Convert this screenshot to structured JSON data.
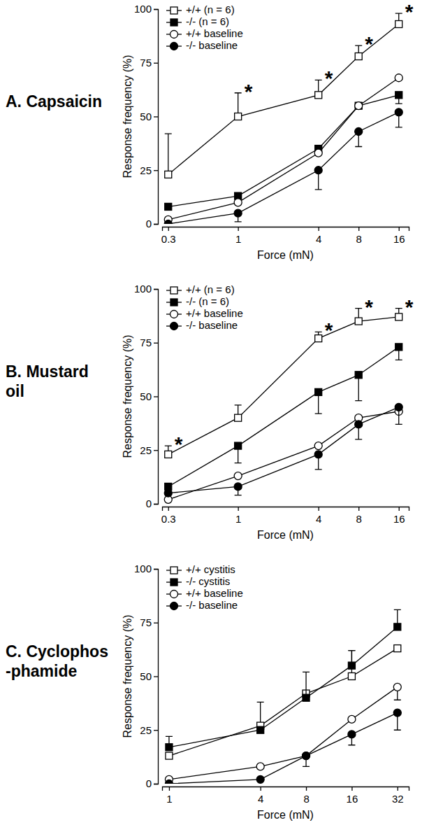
{
  "chart_data": [
    {
      "type": "line",
      "title": [
        "A. Capsaicin"
      ],
      "x_label": "Force (mN)",
      "y_label": "Response frequency (%)",
      "log": "x",
      "legend": "upper-left",
      "x": [
        0.3,
        1,
        4,
        8,
        16
      ],
      "xlim": [
        0.27,
        19
      ],
      "xticks": [
        0.3,
        1,
        4,
        8,
        16
      ],
      "ylim": [
        0,
        100
      ],
      "yticks": [
        0,
        25,
        50,
        75,
        100
      ],
      "series": [
        {
          "name": "+/+ (n = 6)",
          "color": "#000000",
          "marker": "open-square",
          "values": [
            23,
            50,
            60,
            78,
            93
          ],
          "errors_up": [
            19,
            11,
            7,
            5,
            5
          ],
          "errors_down": [
            0,
            0,
            0,
            0,
            0
          ],
          "annotations": [
            null,
            "*",
            "*",
            "*",
            "*"
          ]
        },
        {
          "name": "-/- (n = 6)",
          "color": "#000000",
          "marker": "filled-square",
          "values": [
            8,
            13,
            35,
            55,
            60
          ],
          "errors_up": [
            0,
            0,
            0,
            0,
            0
          ],
          "errors_down": [
            0,
            0,
            0,
            0,
            4
          ]
        },
        {
          "name": "+/+ baseline",
          "color": "#000000",
          "marker": "open-circle",
          "values": [
            2,
            10,
            33,
            55,
            68
          ],
          "errors_up": [
            0,
            0,
            0,
            0,
            0
          ],
          "errors_down": [
            0,
            0,
            0,
            0,
            0
          ]
        },
        {
          "name": "-/- baseline",
          "color": "#000000",
          "marker": "filled-circle",
          "values": [
            0,
            5,
            25,
            43,
            52
          ],
          "errors_up": [
            0,
            0,
            0,
            0,
            0
          ],
          "errors_down": [
            0,
            4,
            9,
            7,
            7
          ]
        }
      ]
    },
    {
      "type": "line",
      "title": [
        "B. Mustard",
        "oil"
      ],
      "x_label": "Force (mN)",
      "y_label": "Response frequency (%)",
      "log": "x",
      "legend": "upper-left",
      "x": [
        0.3,
        1,
        4,
        8,
        16
      ],
      "xlim": [
        0.27,
        19
      ],
      "xticks": [
        0.3,
        1,
        4,
        8,
        16
      ],
      "ylim": [
        0,
        100
      ],
      "yticks": [
        0,
        25,
        50,
        75,
        100
      ],
      "series": [
        {
          "name": "+/+ (n = 6)",
          "color": "#000000",
          "marker": "open-square",
          "values": [
            23,
            40,
            77,
            85,
            87
          ],
          "errors_up": [
            4,
            6,
            3,
            6,
            4
          ],
          "errors_down": [
            0,
            0,
            0,
            0,
            0
          ],
          "annotations": [
            "*",
            null,
            "*",
            "*",
            "*"
          ]
        },
        {
          "name": "-/- (n = 6)",
          "color": "#000000",
          "marker": "filled-square",
          "values": [
            8,
            27,
            52,
            60,
            73
          ],
          "errors_up": [
            0,
            0,
            0,
            0,
            0
          ],
          "errors_down": [
            0,
            8,
            10,
            12,
            6
          ]
        },
        {
          "name": "+/+ baseline",
          "color": "#000000",
          "marker": "open-circle",
          "values": [
            2,
            13,
            27,
            40,
            43
          ],
          "errors_up": [
            0,
            0,
            0,
            0,
            0
          ],
          "errors_down": [
            0,
            0,
            0,
            0,
            0
          ]
        },
        {
          "name": "-/- baseline",
          "color": "#000000",
          "marker": "filled-circle",
          "values": [
            5,
            8,
            23,
            37,
            45
          ],
          "errors_up": [
            0,
            0,
            0,
            0,
            0
          ],
          "errors_down": [
            0,
            4,
            7,
            7,
            8
          ]
        }
      ]
    },
    {
      "type": "line",
      "title": [
        "C. Cyclophos",
        "-phamide"
      ],
      "x_label": "Force (mN)",
      "y_label": "Response frequency (%)",
      "log": "x",
      "legend": "upper-left",
      "x": [
        1,
        4,
        8,
        16,
        32
      ],
      "xlim": [
        0.9,
        38
      ],
      "xticks": [
        1,
        4,
        8,
        16,
        32
      ],
      "ylim": [
        0,
        100
      ],
      "yticks": [
        0,
        25,
        50,
        75,
        100
      ],
      "series": [
        {
          "name": "+/+ cystitis",
          "color": "#000000",
          "marker": "open-square",
          "values": [
            13,
            27,
            42,
            50,
            63
          ],
          "errors_up": [
            0,
            11,
            0,
            12,
            0
          ],
          "errors_down": [
            0,
            0,
            0,
            0,
            0
          ]
        },
        {
          "name": "-/- cystitis",
          "color": "#000000",
          "marker": "filled-square",
          "values": [
            17,
            25,
            40,
            55,
            73
          ],
          "errors_up": [
            5,
            0,
            12,
            7,
            8
          ],
          "errors_down": [
            0,
            0,
            0,
            0,
            0
          ]
        },
        {
          "name": "+/+ baseline",
          "color": "#000000",
          "marker": "open-circle",
          "values": [
            2,
            8,
            13,
            30,
            45
          ],
          "errors_up": [
            0,
            0,
            0,
            0,
            0
          ],
          "errors_down": [
            0,
            0,
            0,
            0,
            6
          ]
        },
        {
          "name": "-/- baseline",
          "color": "#000000",
          "marker": "filled-circle",
          "values": [
            0,
            2,
            13,
            23,
            33
          ],
          "errors_up": [
            0,
            0,
            0,
            0,
            0
          ],
          "errors_down": [
            0,
            0,
            5,
            5,
            8
          ]
        }
      ]
    }
  ]
}
